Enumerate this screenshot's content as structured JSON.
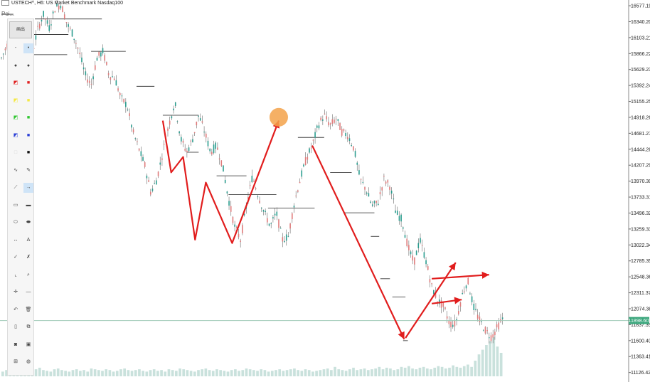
{
  "header": {
    "symbol": "USTECH^, H6:",
    "description": "US Market Benchmark Nasdaq100"
  },
  "sublabel": "Poi...",
  "toolbar": {
    "top_button": "画出",
    "icons": [
      [
        "dash-icon",
        "point-icon"
      ],
      [
        "dot-small-icon",
        "dot-large-icon"
      ],
      [
        "red-highlight-icon",
        "red-square-icon"
      ],
      [
        "yellow-highlight-icon",
        "yellow-square-icon"
      ],
      [
        "green-highlight-icon",
        "green-square-icon"
      ],
      [
        "blue-highlight-icon",
        "blue-square-icon"
      ],
      [
        "white-highlight-icon",
        "black-square-icon"
      ],
      [
        "curve-icon",
        "pencil-icon"
      ],
      [
        "line-icon",
        "arrow-line-icon"
      ],
      [
        "rectangle-icon",
        "filled-rectangle-icon"
      ],
      [
        "ellipse-icon",
        "filled-ellipse-icon"
      ],
      [
        "measure-icon",
        "text-icon"
      ],
      [
        "check-icon",
        "cross-icon"
      ],
      [
        "frame-icon",
        "zoom-icon"
      ],
      [
        "plus-icon",
        "minus-icon"
      ],
      [
        "undo-icon",
        "trash-icon"
      ],
      [
        "page-icon",
        "copy-icon"
      ],
      [
        "camera-icon",
        "save-icon"
      ],
      [
        "grid-icon",
        "globe-icon"
      ]
    ],
    "glyphs": [
      [
        "-",
        "•"
      ],
      [
        "●",
        "●"
      ],
      [
        "◩",
        "■"
      ],
      [
        "◩",
        "■"
      ],
      [
        "◩",
        "■"
      ],
      [
        "◩",
        "■"
      ],
      [
        "□",
        "■"
      ],
      [
        "∿",
        "✎"
      ],
      [
        "⟋",
        "→"
      ],
      [
        "▭",
        "▬"
      ],
      [
        "⬭",
        "⬬"
      ],
      [
        "↔",
        "A"
      ],
      [
        "✓",
        "✗"
      ],
      [
        "⌞",
        "⌕"
      ],
      [
        "✛",
        "—"
      ],
      [
        "↶",
        "🗑"
      ],
      [
        "▯",
        "⧉"
      ],
      [
        "◙",
        "▣"
      ],
      [
        "⊞",
        "◍"
      ]
    ]
  },
  "chart_data": {
    "type": "candlestick",
    "symbol": "USTECH^",
    "timeframe": "H6",
    "y_ticks": [
      "16577.19",
      "16340.20",
      "16103.21",
      "15866.22",
      "15629.23",
      "15392.24",
      "15155.25",
      "14918.26",
      "14681.27",
      "14444.28",
      "14207.29",
      "13970.30",
      "13733.31",
      "13496.32",
      "13259.33",
      "13022.34",
      "12785.35",
      "12548.36",
      "12311.37",
      "12074.38",
      "11837.39",
      "11600.40",
      "11363.41",
      "11126.42"
    ],
    "ylim": [
      11070,
      16620
    ],
    "current_price": "11898.60",
    "current_price_value": 11898.6,
    "price_path": [
      [
        0,
        15800
      ],
      [
        5,
        16000
      ],
      [
        10,
        15700
      ],
      [
        15,
        15550
      ],
      [
        20,
        16100
      ],
      [
        25,
        15800
      ],
      [
        30,
        16200
      ],
      [
        35,
        16450
      ],
      [
        40,
        16250
      ],
      [
        45,
        16550
      ],
      [
        50,
        16600
      ],
      [
        55,
        16300
      ],
      [
        60,
        16150
      ],
      [
        65,
        15900
      ],
      [
        70,
        15550
      ],
      [
        75,
        15400
      ],
      [
        80,
        15800
      ],
      [
        85,
        15900
      ],
      [
        90,
        15550
      ],
      [
        95,
        15500
      ],
      [
        100,
        15200
      ],
      [
        105,
        15100
      ],
      [
        110,
        14700
      ],
      [
        115,
        14450
      ],
      [
        120,
        14200
      ],
      [
        125,
        13800
      ],
      [
        130,
        14000
      ],
      [
        135,
        14400
      ],
      [
        140,
        14800
      ],
      [
        145,
        15150
      ],
      [
        150,
        14600
      ],
      [
        155,
        14400
      ],
      [
        160,
        14600
      ],
      [
        165,
        14950
      ],
      [
        170,
        14700
      ],
      [
        175,
        14400
      ],
      [
        180,
        14500
      ],
      [
        185,
        14200
      ],
      [
        190,
        13700
      ],
      [
        195,
        13300
      ],
      [
        200,
        13100
      ],
      [
        205,
        13600
      ],
      [
        210,
        14050
      ],
      [
        215,
        13750
      ],
      [
        220,
        13500
      ],
      [
        225,
        13300
      ],
      [
        230,
        13500
      ],
      [
        235,
        13100
      ],
      [
        240,
        13150
      ],
      [
        245,
        13650
      ],
      [
        250,
        14000
      ],
      [
        255,
        14300
      ],
      [
        260,
        14500
      ],
      [
        265,
        14800
      ],
      [
        270,
        14950
      ],
      [
        275,
        14800
      ],
      [
        280,
        14900
      ],
      [
        285,
        14700
      ],
      [
        290,
        14650
      ],
      [
        295,
        14450
      ],
      [
        300,
        14000
      ],
      [
        305,
        13850
      ],
      [
        310,
        13600
      ],
      [
        315,
        13650
      ],
      [
        320,
        14000
      ],
      [
        325,
        13900
      ],
      [
        330,
        13500
      ],
      [
        335,
        13400
      ],
      [
        340,
        13000
      ],
      [
        345,
        12750
      ],
      [
        350,
        13100
      ],
      [
        355,
        12800
      ],
      [
        360,
        12400
      ],
      [
        365,
        12200
      ],
      [
        370,
        12100
      ],
      [
        375,
        11850
      ],
      [
        380,
        11850
      ],
      [
        385,
        12250
      ],
      [
        390,
        12500
      ],
      [
        395,
        12100
      ],
      [
        400,
        11900
      ],
      [
        405,
        11750
      ],
      [
        410,
        11650
      ],
      [
        415,
        11800
      ],
      [
        420,
        11950
      ]
    ],
    "volume": [
      6,
      8,
      5,
      9,
      7,
      6,
      10,
      8,
      7,
      9,
      11,
      8,
      7,
      6,
      9,
      10,
      8,
      7,
      6,
      8,
      9,
      7,
      8,
      6,
      10,
      9,
      8,
      7,
      9,
      8,
      6,
      7,
      9,
      10,
      8,
      7,
      8,
      9,
      7,
      6,
      8,
      9,
      7,
      8,
      6,
      9,
      8,
      7,
      10,
      9,
      8,
      7,
      6,
      8,
      9,
      10,
      8,
      7,
      9,
      8,
      7,
      6,
      8,
      9,
      7,
      8,
      10,
      9,
      8,
      7,
      9,
      8,
      6,
      7,
      8,
      9,
      7,
      8,
      9,
      10,
      8,
      7,
      9,
      8,
      6,
      7,
      8,
      9,
      10,
      8,
      12,
      9,
      8,
      7,
      9,
      11,
      8,
      9,
      10,
      8,
      9,
      10,
      12,
      9,
      11,
      10,
      8,
      9,
      12,
      11,
      13,
      10,
      9,
      11,
      12,
      10,
      9,
      11,
      13,
      12,
      10,
      11,
      14,
      12,
      11,
      13,
      15,
      12,
      20,
      28,
      34,
      40,
      45,
      50,
      38,
      30
    ],
    "xlim": [
      0,
      420
    ],
    "levels": [
      [
        28,
        16380,
        84
      ],
      [
        75,
        15900,
        104
      ],
      [
        113,
        15380,
        128
      ],
      [
        135,
        14950,
        165
      ],
      [
        165,
        14400,
        155
      ],
      [
        180,
        14050,
        205
      ],
      [
        190,
        13770,
        230
      ],
      [
        223,
        13570,
        262
      ],
      [
        248,
        14620,
        270
      ],
      [
        275,
        14100,
        293
      ],
      [
        286,
        13500,
        312
      ],
      [
        309,
        13150,
        316
      ],
      [
        317,
        12520,
        325
      ],
      [
        327,
        12250,
        338
      ],
      [
        336,
        11600,
        340
      ],
      [
        5,
        15850,
        55
      ],
      [
        22,
        16150,
        56
      ],
      [
        0,
        16450,
        10
      ]
    ],
    "arrows": [
      [
        [
          135,
          14870
        ],
        [
          142,
          14100
        ],
        [
          152,
          14330
        ],
        [
          162,
          13100
        ],
        [
          171,
          13950
        ],
        [
          193,
          13050
        ],
        [
          232,
          14870
        ]
      ],
      [
        [
          260,
          14500
        ],
        [
          337,
          11620
        ]
      ],
      [
        [
          338,
          11640
        ],
        [
          380,
          12760
        ]
      ],
      [
        [
          360,
          12520
        ],
        [
          408,
          12580
        ]
      ],
      [
        [
          360,
          12150
        ],
        [
          385,
          12210
        ]
      ]
    ],
    "highlight_point": [
      232,
      14920
    ]
  }
}
